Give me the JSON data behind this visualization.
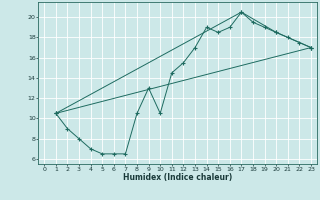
{
  "xlabel": "Humidex (Indice chaleur)",
  "bg_color": "#cce8e8",
  "grid_color": "#ffffff",
  "line_color": "#1e6b60",
  "xlim": [
    -0.5,
    23.5
  ],
  "ylim": [
    5.5,
    21.5
  ],
  "xticks": [
    0,
    1,
    2,
    3,
    4,
    5,
    6,
    7,
    8,
    9,
    10,
    11,
    12,
    13,
    14,
    15,
    16,
    17,
    18,
    19,
    20,
    21,
    22,
    23
  ],
  "yticks": [
    6,
    8,
    10,
    12,
    14,
    16,
    18,
    20
  ],
  "line1_x": [
    1,
    2,
    3,
    4,
    5,
    6,
    7,
    8,
    9,
    10,
    11,
    12,
    13,
    14,
    15,
    16,
    17,
    18,
    19,
    20,
    21,
    22,
    23
  ],
  "line1_y": [
    10.5,
    9.0,
    8.0,
    7.0,
    6.5,
    6.5,
    6.5,
    10.5,
    13.0,
    10.5,
    14.5,
    15.5,
    17.0,
    19.0,
    18.5,
    19.0,
    20.5,
    19.5,
    19.0,
    18.5,
    18.0,
    17.5,
    17.0
  ],
  "line2_x": [
    1,
    23
  ],
  "line2_y": [
    10.5,
    17.0
  ],
  "line3_x": [
    1,
    17,
    20,
    23
  ],
  "line3_y": [
    10.5,
    20.5,
    18.5,
    17.0
  ]
}
